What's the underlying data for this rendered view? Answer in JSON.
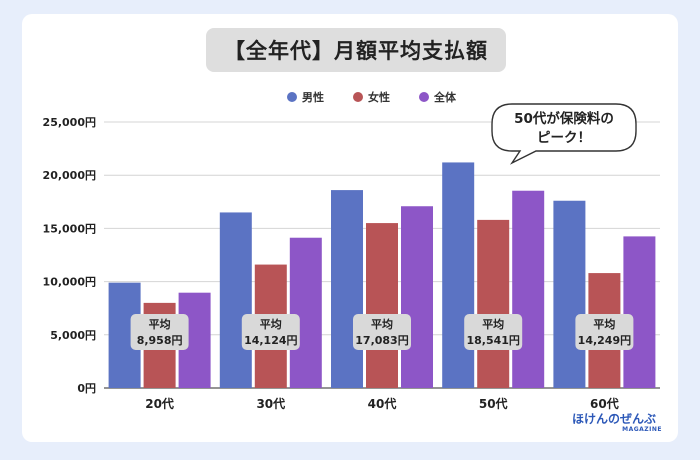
{
  "title": "【全年代】月額平均支払額",
  "callout": {
    "line1": "50代が保険料の",
    "line2": "ピーク！"
  },
  "brand": {
    "name": "ほけんのぜんぶ",
    "sub": "MAGAZINE"
  },
  "chart_data": {
    "type": "bar",
    "categories": [
      "20代",
      "30代",
      "40代",
      "50代",
      "60代"
    ],
    "series": [
      {
        "name": "男性",
        "color": "#5b73c3",
        "values": [
          9900,
          16500,
          18600,
          21200,
          17600
        ]
      },
      {
        "name": "女性",
        "color": "#b85456",
        "values": [
          8000,
          11600,
          15500,
          15800,
          10800
        ]
      },
      {
        "name": "全体",
        "color": "#8d56c7",
        "values": [
          8958,
          14124,
          17083,
          18541,
          14249
        ]
      }
    ],
    "average_label": "平均",
    "average_values": [
      "8,958円",
      "14,124円",
      "17,083円",
      "18,541円",
      "14,249円"
    ],
    "y_ticks": [
      "0円",
      "5,000円",
      "10,000円",
      "15,000円",
      "20,000円",
      "25,000円"
    ],
    "ylim": [
      0,
      25000
    ],
    "grid": true,
    "legend_position": "top"
  }
}
